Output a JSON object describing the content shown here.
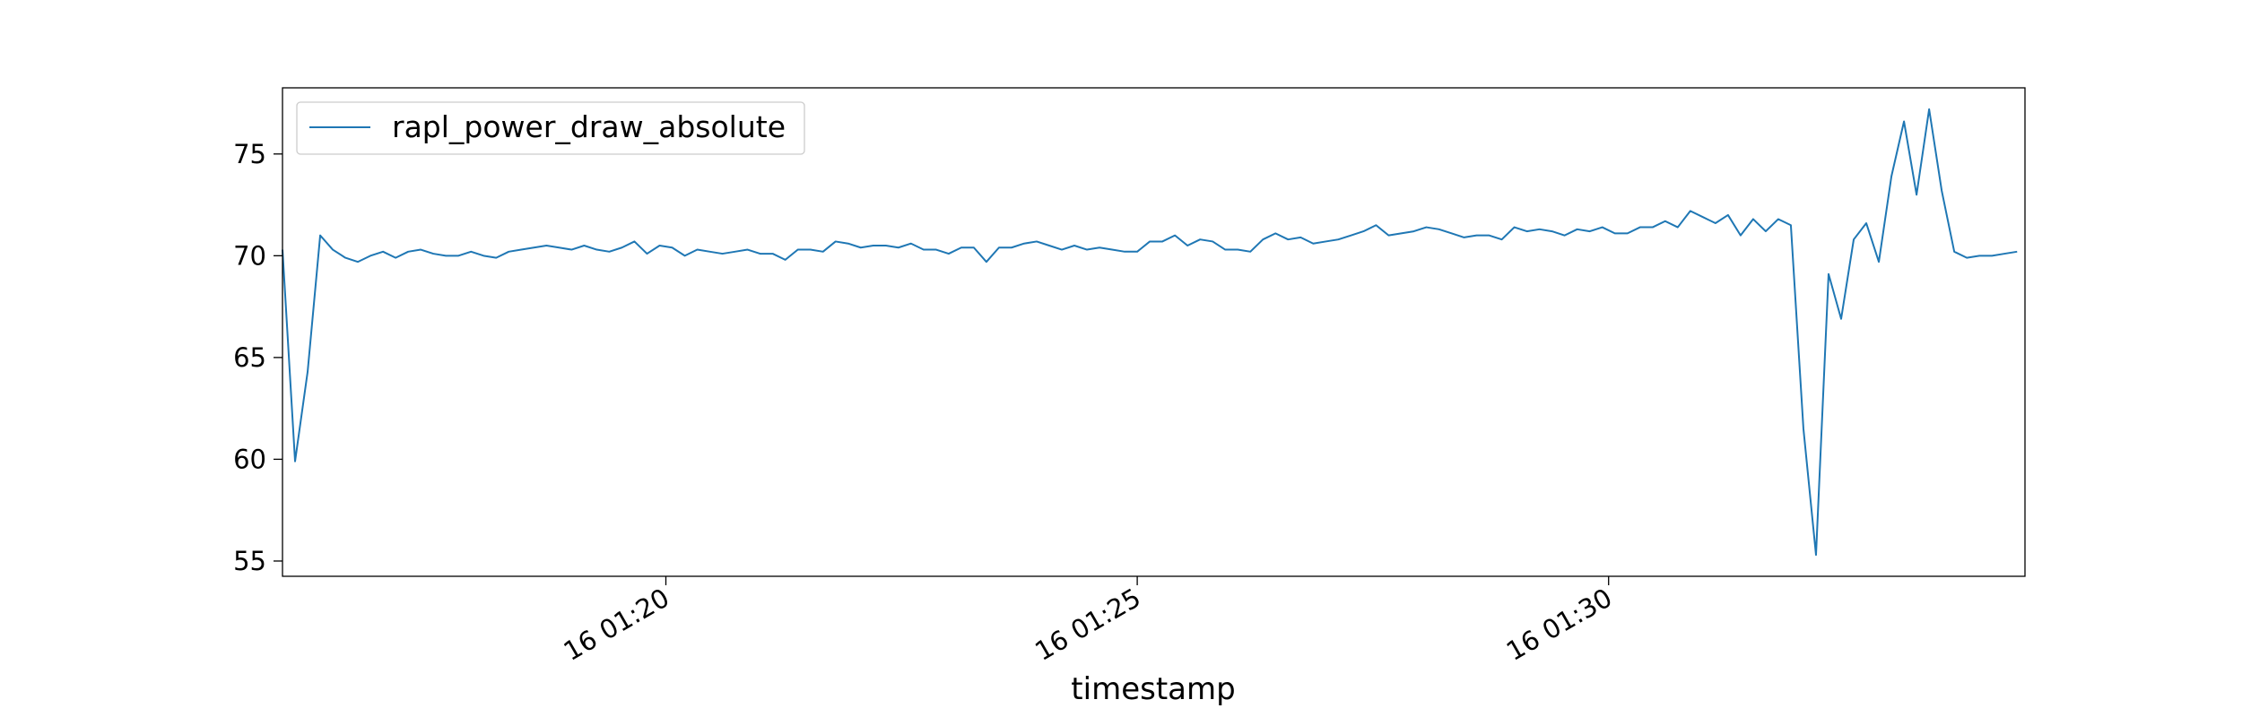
{
  "chart_data": {
    "type": "line",
    "title": "",
    "xlabel": "timestamp",
    "ylabel": "",
    "grid": false,
    "legend_position": "top-left",
    "x_axis": {
      "type": "time",
      "start": "16 01:15:56",
      "end": "16 01:34:25",
      "ticks": [
        {
          "time": "16 01:20:00",
          "label": "16 01:20"
        },
        {
          "time": "16 01:25:00",
          "label": "16 01:25"
        },
        {
          "time": "16 01:30:00",
          "label": "16 01:30"
        }
      ]
    },
    "y_axis": {
      "ylim": [
        54.25,
        78.25
      ],
      "ticks": [
        55,
        60,
        65,
        70,
        75
      ]
    },
    "series": [
      {
        "name": "rapl_power_draw_absolute",
        "color": "#1f77b4",
        "x_start": "16 01:15:56",
        "sample_interval_s": 8,
        "values": [
          70.3,
          59.9,
          64.3,
          71.0,
          70.3,
          69.9,
          69.7,
          70.0,
          70.2,
          69.9,
          70.2,
          70.3,
          70.1,
          70.0,
          70.0,
          70.2,
          70.0,
          69.9,
          70.2,
          70.3,
          70.4,
          70.5,
          70.4,
          70.3,
          70.5,
          70.3,
          70.2,
          70.4,
          70.7,
          70.1,
          70.5,
          70.4,
          70.0,
          70.3,
          70.2,
          70.1,
          70.2,
          70.3,
          70.1,
          70.1,
          69.8,
          70.3,
          70.3,
          70.2,
          70.7,
          70.6,
          70.4,
          70.5,
          70.5,
          70.4,
          70.6,
          70.3,
          70.3,
          70.1,
          70.4,
          70.4,
          69.7,
          70.4,
          70.4,
          70.6,
          70.7,
          70.5,
          70.3,
          70.5,
          70.3,
          70.4,
          70.3,
          70.2,
          70.2,
          70.7,
          70.7,
          71.0,
          70.5,
          70.8,
          70.7,
          70.3,
          70.3,
          70.2,
          70.8,
          71.1,
          70.8,
          70.9,
          70.6,
          70.7,
          70.8,
          71.0,
          71.2,
          71.5,
          71.0,
          71.1,
          71.2,
          71.4,
          71.3,
          71.1,
          70.9,
          71.0,
          71.0,
          70.8,
          71.4,
          71.2,
          71.3,
          71.2,
          71.0,
          71.3,
          71.2,
          71.4,
          71.1,
          71.1,
          71.4,
          71.4,
          71.7,
          71.4,
          72.2,
          71.9,
          71.6,
          72.0,
          71.0,
          71.8,
          71.2,
          71.8,
          71.5,
          61.5,
          55.3,
          69.1,
          66.9,
          70.8,
          71.6,
          69.7,
          73.9,
          76.6,
          73.0,
          77.2,
          73.2,
          70.2,
          69.9,
          70.0,
          70.0,
          70.1,
          70.2
        ]
      }
    ]
  }
}
